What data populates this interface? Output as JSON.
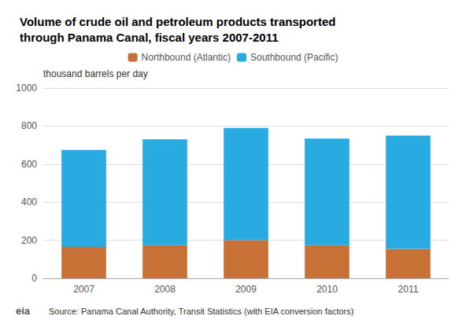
{
  "chart_data": {
    "type": "bar",
    "title": "Volume of crude oil and petroleum products transported\nthrough Panama Canal, fiscal years 2007-2011",
    "y_label": "thousand barrels per day",
    "categories": [
      "2007",
      "2008",
      "2009",
      "2010",
      "2011"
    ],
    "series": [
      {
        "name": "Northbound (Atlantic)",
        "color": "#C87137",
        "values": [
          165,
          175,
          200,
          175,
          155
        ]
      },
      {
        "name": "Southbound (Pacific)",
        "color": "#29ABE2",
        "values": [
          510,
          555,
          590,
          560,
          595
        ]
      }
    ],
    "stacked": true,
    "ylim": [
      0,
      1000
    ],
    "yticks": [
      0,
      200,
      400,
      600,
      800,
      1000
    ],
    "grid": true,
    "legend": "top",
    "annotations": [
      "eia",
      "Source: Panama Canal Authority, Transit Statistics (with EIA conversion factors)"
    ]
  }
}
